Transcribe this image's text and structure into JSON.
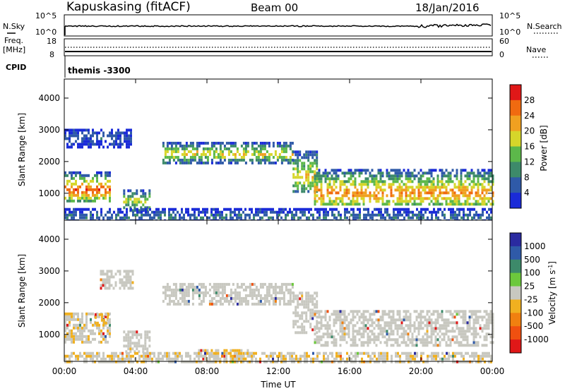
{
  "header": {
    "station": "Kapuskasing (fitACF)",
    "beam": "Beam 00",
    "date": "18/Jan/2016"
  },
  "top_panels": {
    "nsky_label": "N.Sky",
    "nsky_ticks": [
      "10^5",
      "10^0"
    ],
    "nsearch_label": "N.Search",
    "nsearch_ticks": [
      "10^5",
      "10^0"
    ],
    "freq_label_1": "Freq.",
    "freq_label_2": "[MHz]",
    "freq_ticks": [
      "18",
      "8"
    ],
    "nave_label": "Nave",
    "nave_ticks": [
      "60",
      "0"
    ],
    "cpid_label": "CPID",
    "cpid_value": "themis -3300"
  },
  "colors": {
    "power_scale": [
      "#1a2bd8",
      "#2f5aa8",
      "#3d8a6a",
      "#5cb84a",
      "#d6d62a",
      "#f0a020",
      "#f06a10",
      "#e01818"
    ],
    "velocity_scale": [
      "#2a2aa0",
      "#2f5aa8",
      "#3d8a6a",
      "#6cc83c",
      "#c8c8c0",
      "#f0b020",
      "#f08010",
      "#f05010",
      "#e01818"
    ],
    "ground_scatter": "#c8c8c0"
  },
  "chart_data": [
    {
      "type": "heatmap",
      "name": "power-panel",
      "ylabel": "Slant Range [km]",
      "ylim": [
        150,
        4600
      ],
      "yticks": [
        "1000",
        "2000",
        "3000",
        "4000"
      ],
      "ytick_values": [
        1000,
        2000,
        3000,
        4000
      ],
      "xlim_hours": [
        0,
        24
      ],
      "colorbar_label": "Power [dB]",
      "colorbar_ticks": [
        "4",
        "8",
        "12",
        "16",
        "20",
        "24",
        "28"
      ],
      "colorbar_range": [
        0,
        32
      ],
      "regions": [
        {
          "t0": 0.0,
          "t1": 2.5,
          "r0": 800,
          "r1": 1700,
          "core": 1150,
          "peak": 28
        },
        {
          "t0": 0.0,
          "t1": 3.8,
          "r0": 2500,
          "r1": 3100,
          "core": 2800,
          "peak": 6
        },
        {
          "t0": 3.3,
          "t1": 4.8,
          "r0": 500,
          "r1": 1200,
          "core": 800,
          "peak": 18
        },
        {
          "t0": 5.5,
          "t1": 12.8,
          "r0": 2000,
          "r1": 2650,
          "core": 2300,
          "peak": 20
        },
        {
          "t0": 12.8,
          "t1": 14.2,
          "r0": 1100,
          "r1": 2400,
          "core": 1600,
          "peak": 20
        },
        {
          "t0": 14.0,
          "t1": 24.0,
          "r0": 700,
          "r1": 1800,
          "core": 1050,
          "peak": 24
        },
        {
          "t0": 0.0,
          "t1": 24.0,
          "r0": 180,
          "r1": 550,
          "core": 300,
          "peak": 8
        }
      ]
    },
    {
      "type": "heatmap",
      "name": "velocity-panel",
      "ylabel": "Slant Range [km]",
      "ylim": [
        150,
        4600
      ],
      "yticks": [
        "1000",
        "2000",
        "3000",
        "4000"
      ],
      "ytick_values": [
        1000,
        2000,
        3000,
        4000
      ],
      "xlabel": "Time UT",
      "xticks": [
        "00:00",
        "04:00",
        "08:00",
        "12:00",
        "16:00",
        "20:00",
        "00:00"
      ],
      "xtick_values": [
        0,
        4,
        8,
        12,
        16,
        20,
        24
      ],
      "colorbar_label": "Velocity [m s^-1]",
      "colorbar_ticks": [
        "1000",
        "500",
        "100",
        "25",
        "-25",
        "-100",
        "-500",
        "-1000"
      ],
      "regions": [
        {
          "t0": 0.0,
          "t1": 2.5,
          "r0": 800,
          "r1": 1700,
          "velocity": -25
        },
        {
          "t0": 1.7,
          "t1": 2.5,
          "r0": 1400,
          "r1": 1700,
          "velocity": -100
        },
        {
          "t0": 2.0,
          "t1": 3.8,
          "r0": 2500,
          "r1": 3100,
          "velocity": 0
        },
        {
          "t0": 3.3,
          "t1": 4.8,
          "r0": 500,
          "r1": 1200,
          "velocity": 0
        },
        {
          "t0": 5.5,
          "t1": 12.8,
          "r0": 2000,
          "r1": 2650,
          "velocity": 0
        },
        {
          "t0": 12.8,
          "t1": 14.2,
          "r0": 1100,
          "r1": 2400,
          "velocity": 0
        },
        {
          "t0": 14.0,
          "t1": 24.0,
          "r0": 700,
          "r1": 1800,
          "velocity": 0
        },
        {
          "t0": 7.5,
          "t1": 10.5,
          "r0": 180,
          "r1": 600,
          "velocity": -100
        },
        {
          "t0": 0.0,
          "t1": 24.0,
          "r0": 180,
          "r1": 450,
          "velocity": -25
        }
      ]
    }
  ]
}
